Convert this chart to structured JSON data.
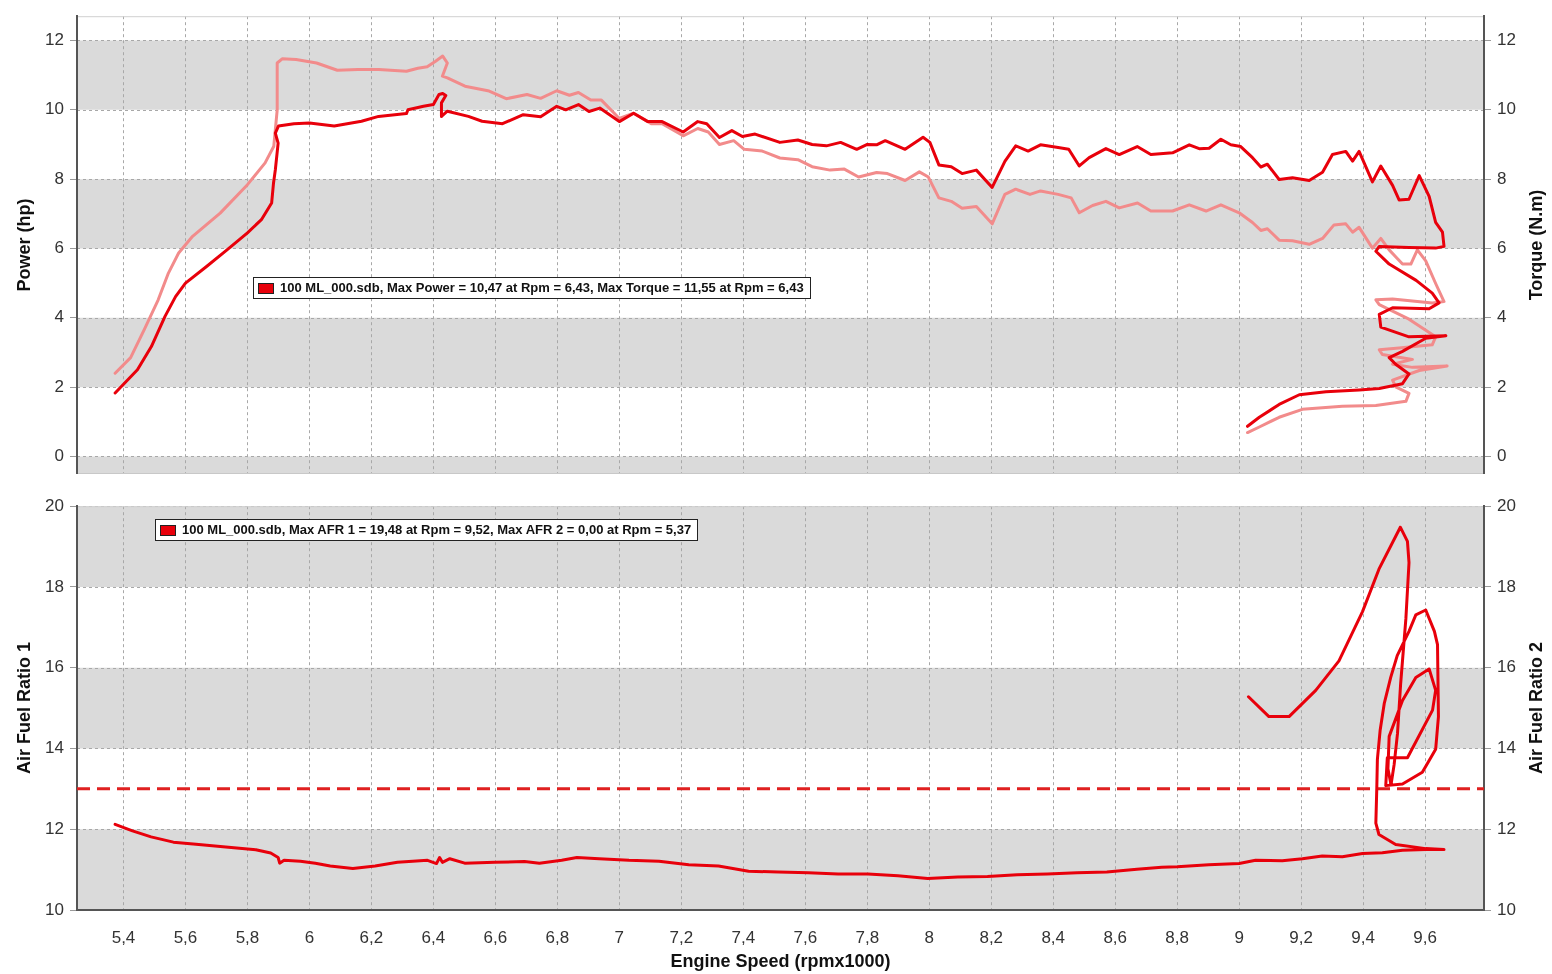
{
  "chart_data": [
    {
      "type": "line",
      "legend": "left",
      "tick_labels": "y",
      "grid": true,
      "ylabel": "Power (hp)",
      "y2label": "Torque (N.m)",
      "xlim": [
        5.25,
        9.79
      ],
      "xticks": [
        5.4,
        5.6,
        5.8,
        6,
        6.2,
        6.4,
        6.6,
        6.8,
        7,
        7.2,
        7.4,
        7.6,
        7.8,
        8,
        8.2,
        8.4,
        8.6,
        8.8,
        9,
        9.2,
        9.4,
        9.6
      ],
      "ylim": [
        -0.5,
        12.7
      ],
      "yticks": [
        0,
        2,
        4,
        6,
        8,
        10,
        12
      ],
      "y2lim": [
        -0.5,
        12.7
      ],
      "y2ticks": [
        0,
        2,
        4,
        6,
        8,
        10,
        12
      ],
      "bands": [
        {
          "axis": "y",
          "from": -0.5,
          "to": 0,
          "color": "#dadada"
        },
        {
          "axis": "y",
          "from": 2,
          "to": 4,
          "color": "#dadada"
        },
        {
          "axis": "y",
          "from": 6,
          "to": 8,
          "color": "#dadada"
        },
        {
          "axis": "y",
          "from": 10,
          "to": 12,
          "color": "#dadada"
        }
      ],
      "series": [
        {
          "name": "100 ML_000.sdb, Max Power = 10,47 at Rpm = 6,43, Max Torque = 11,55 at Rpm = 6,43",
          "color": "#e8000b",
          "x": [
            5.373,
            5.445,
            5.49,
            5.534,
            5.568,
            5.6,
            5.668,
            5.734,
            5.8,
            5.845,
            5.878,
            5.884,
            5.89,
            5.899,
            5.89,
            5.9,
            5.95,
            6.0,
            6.08,
            6.168,
            6.223,
            6.313,
            6.318,
            6.368,
            6.4,
            6.418,
            6.43,
            6.44,
            6.426,
            6.426,
            6.445,
            6.513,
            6.557,
            6.623,
            6.69,
            6.746,
            6.798,
            6.827,
            6.868,
            6.902,
            6.937,
            7.0,
            7.046,
            7.092,
            7.138,
            7.206,
            7.253,
            7.282,
            7.323,
            7.363,
            7.397,
            7.438,
            7.518,
            7.576,
            7.622,
            7.668,
            7.714,
            7.766,
            7.8,
            7.83,
            7.858,
            7.922,
            7.98,
            8.002,
            8.031,
            8.071,
            8.106,
            8.152,
            8.203,
            8.244,
            8.279,
            8.319,
            8.359,
            8.416,
            8.45,
            8.484,
            8.516,
            8.57,
            8.613,
            8.671,
            8.715,
            8.785,
            8.839,
            8.871,
            8.903,
            8.941,
            8.973,
            9.005,
            9.043,
            9.07,
            9.091,
            9.129,
            9.172,
            9.226,
            9.269,
            9.301,
            9.344,
            9.366,
            9.387,
            9.43,
            9.457,
            9.495,
            9.516,
            9.548,
            9.581,
            9.613,
            9.634,
            9.656,
            9.661,
            9.634,
            9.548,
            9.452,
            9.441,
            9.484,
            9.571,
            9.623,
            9.645,
            9.613,
            9.495,
            9.452,
            9.457,
            9.548,
            9.667,
            9.602,
            9.527,
            9.484,
            9.505,
            9.548,
            9.527,
            9.452,
            9.387,
            9.28,
            9.194,
            9.129,
            9.065,
            9.027
          ],
          "values": [
            1.83,
            2.5,
            3.17,
            4.04,
            4.61,
            5.0,
            5.48,
            5.96,
            6.45,
            6.83,
            7.31,
            7.88,
            8.27,
            9.04,
            9.33,
            9.53,
            9.6,
            9.62,
            9.53,
            9.67,
            9.81,
            9.89,
            10.0,
            10.1,
            10.15,
            10.44,
            10.47,
            10.41,
            10.2,
            9.81,
            9.96,
            9.81,
            9.67,
            9.6,
            9.86,
            9.8,
            10.1,
            10.0,
            10.15,
            9.95,
            10.05,
            9.66,
            9.9,
            9.66,
            9.66,
            9.36,
            9.66,
            9.6,
            9.2,
            9.4,
            9.23,
            9.3,
            9.06,
            9.13,
            9.0,
            8.96,
            9.06,
            8.86,
            9.0,
            8.99,
            9.11,
            8.86,
            9.21,
            9.06,
            8.41,
            8.36,
            8.16,
            8.26,
            7.76,
            8.51,
            8.96,
            8.81,
            8.99,
            8.91,
            8.86,
            8.38,
            8.62,
            8.88,
            8.71,
            8.94,
            8.71,
            8.76,
            8.99,
            8.88,
            8.89,
            9.15,
            8.99,
            8.94,
            8.62,
            8.35,
            8.43,
            7.99,
            8.04,
            7.96,
            8.2,
            8.71,
            8.8,
            8.52,
            8.8,
            7.92,
            8.38,
            7.82,
            7.4,
            7.42,
            8.1,
            7.5,
            6.75,
            6.47,
            6.06,
            6.01,
            6.03,
            6.06,
            5.92,
            5.55,
            5.08,
            4.71,
            4.43,
            4.26,
            4.29,
            4.1,
            3.73,
            3.45,
            3.48,
            3.41,
            3.03,
            2.85,
            2.66,
            2.38,
            2.1,
            1.96,
            1.92,
            1.87,
            1.78,
            1.5,
            1.13,
            0.87
          ]
        },
        {
          "color": "#f28b8b",
          "axis": "y2",
          "x": [
            5.373,
            5.423,
            5.467,
            5.512,
            5.545,
            5.578,
            5.623,
            5.712,
            5.8,
            5.857,
            5.885,
            5.896,
            5.896,
            5.912,
            5.957,
            6.023,
            6.09,
            6.157,
            6.224,
            6.313,
            6.35,
            6.38,
            6.407,
            6.43,
            6.445,
            6.429,
            6.445,
            6.502,
            6.58,
            6.635,
            6.702,
            6.746,
            6.798,
            6.839,
            6.868,
            6.908,
            6.942,
            7.0,
            7.046,
            7.103,
            7.138,
            7.206,
            7.253,
            7.287,
            7.323,
            7.369,
            7.403,
            7.461,
            7.518,
            7.576,
            7.622,
            7.68,
            7.726,
            7.772,
            7.83,
            7.865,
            7.922,
            7.968,
            7.997,
            8.031,
            8.071,
            8.106,
            8.152,
            8.203,
            8.244,
            8.279,
            8.325,
            8.359,
            8.416,
            8.458,
            8.484,
            8.527,
            8.57,
            8.613,
            8.672,
            8.715,
            8.785,
            8.839,
            8.893,
            8.941,
            9.0,
            9.043,
            9.07,
            9.091,
            9.129,
            9.172,
            9.226,
            9.269,
            9.306,
            9.344,
            9.366,
            9.387,
            9.43,
            9.457,
            9.484,
            9.527,
            9.554,
            9.575,
            9.602,
            9.634,
            9.661,
            9.623,
            9.495,
            9.441,
            9.452,
            9.548,
            9.634,
            9.623,
            9.516,
            9.452,
            9.462,
            9.559,
            9.495,
            9.559,
            9.671,
            9.581,
            9.495,
            9.505,
            9.548,
            9.538,
            9.441,
            9.333,
            9.204,
            9.129,
            9.065,
            9.027
          ],
          "values": [
            2.4,
            2.85,
            3.66,
            4.52,
            5.29,
            5.87,
            6.35,
            7.02,
            7.84,
            8.47,
            8.95,
            10.0,
            11.35,
            11.47,
            11.45,
            11.35,
            11.14,
            11.16,
            11.16,
            11.11,
            11.2,
            11.24,
            11.4,
            11.55,
            11.35,
            10.97,
            10.92,
            10.68,
            10.54,
            10.32,
            10.44,
            10.33,
            10.55,
            10.42,
            10.5,
            10.28,
            10.28,
            9.75,
            9.9,
            9.6,
            9.6,
            9.25,
            9.46,
            9.36,
            9.0,
            9.11,
            8.86,
            8.81,
            8.61,
            8.56,
            8.36,
            8.26,
            8.29,
            8.06,
            8.19,
            8.16,
            7.96,
            8.21,
            8.06,
            7.46,
            7.36,
            7.16,
            7.21,
            6.71,
            7.56,
            7.71,
            7.56,
            7.66,
            7.56,
            7.46,
            7.03,
            7.24,
            7.36,
            7.17,
            7.31,
            7.08,
            7.08,
            7.26,
            7.08,
            7.26,
            7.03,
            6.75,
            6.52,
            6.57,
            6.24,
            6.22,
            6.12,
            6.29,
            6.68,
            6.71,
            6.47,
            6.61,
            6.01,
            6.29,
            5.96,
            5.55,
            5.55,
            5.96,
            5.64,
            4.99,
            4.47,
            4.43,
            4.54,
            4.52,
            4.38,
            3.96,
            3.45,
            3.22,
            3.13,
            3.08,
            2.94,
            2.8,
            2.66,
            2.57,
            2.61,
            2.48,
            2.2,
            2.01,
            1.82,
            1.59,
            1.47,
            1.45,
            1.36,
            1.13,
            0.85,
            0.69
          ]
        }
      ]
    },
    {
      "type": "line",
      "legend": "top left",
      "grid": true,
      "xlabel": "Engine Speed (rpmx1000)",
      "ylabel": "Air Fuel Ratio 1",
      "y2label": "Air Fuel Ratio 2",
      "xlim": [
        5.25,
        9.79
      ],
      "xticks": [
        {
          "value": 5.4,
          "label": "5,4"
        },
        {
          "value": 5.6,
          "label": "5,6"
        },
        {
          "value": 5.8,
          "label": "5,8"
        },
        6,
        {
          "value": 6.2,
          "label": "6,2"
        },
        {
          "value": 6.4,
          "label": "6,4"
        },
        {
          "value": 6.6,
          "label": "6,6"
        },
        {
          "value": 6.8,
          "label": "6,8"
        },
        7,
        {
          "value": 7.2,
          "label": "7,2"
        },
        {
          "value": 7.4,
          "label": "7,4"
        },
        {
          "value": 7.6,
          "label": "7,6"
        },
        {
          "value": 7.8,
          "label": "7,8"
        },
        8,
        {
          "value": 8.2,
          "label": "8,2"
        },
        {
          "value": 8.4,
          "label": "8,4"
        },
        {
          "value": 8.6,
          "label": "8,6"
        },
        {
          "value": 8.8,
          "label": "8,8"
        },
        9,
        {
          "value": 9.2,
          "label": "9,2"
        },
        {
          "value": 9.4,
          "label": "9,4"
        },
        {
          "value": 9.6,
          "label": "9,6"
        }
      ],
      "ylim": [
        10,
        20
      ],
      "yticks": [
        10,
        12,
        14,
        16,
        18,
        20
      ],
      "y2lim": [
        10,
        20
      ],
      "y2ticks": [
        10,
        12,
        14,
        16,
        18,
        20
      ],
      "bands": [
        {
          "axis": "y",
          "from": 10,
          "to": 12,
          "color": "#dadada"
        },
        {
          "axis": "y",
          "from": 14,
          "to": 16,
          "color": "#dadada"
        },
        {
          "axis": "y",
          "from": 18,
          "to": 20,
          "color": "#dadada"
        }
      ],
      "ref_lines": [
        {
          "axis": "y",
          "value": 13,
          "color": "#e02020",
          "line_style": "dashed"
        }
      ],
      "series": [
        {
          "name": "100 ML_000.sdb, Max AFR 1 = 19,48 at Rpm = 9,52, Max AFR 2 = 0,00 at Rpm = 5,37",
          "color": "#e8000b",
          "x": [
            5.373,
            5.429,
            5.489,
            5.561,
            5.634,
            5.73,
            5.827,
            5.875,
            5.899,
            5.904,
            5.918,
            5.971,
            6.019,
            6.067,
            6.14,
            6.212,
            6.284,
            6.333,
            6.381,
            6.41,
            6.42,
            6.429,
            6.453,
            6.501,
            6.598,
            6.694,
            6.742,
            6.814,
            6.863,
            6.935,
            7.031,
            7.128,
            7.224,
            7.32,
            7.417,
            7.513,
            7.61,
            7.706,
            7.802,
            7.899,
            7.995,
            8.092,
            8.188,
            8.284,
            8.381,
            8.477,
            8.573,
            8.67,
            8.75,
            8.8,
            8.902,
            9.0,
            9.053,
            9.139,
            9.204,
            9.268,
            9.333,
            9.398,
            9.462,
            9.527,
            9.602,
            9.661,
            9.602,
            9.505,
            9.451,
            9.441,
            9.444,
            9.446,
            9.455,
            9.468,
            9.489,
            9.51,
            9.548,
            9.57,
            9.602,
            9.63,
            9.64,
            9.643,
            9.634,
            9.591,
            9.527,
            9.473,
            9.478,
            9.543,
            9.624,
            9.634,
            9.613,
            9.57,
            9.527,
            9.484,
            9.48,
            9.49,
            9.5,
            9.511,
            9.521,
            9.538,
            9.548,
            9.543,
            9.52,
            9.451,
            9.398,
            9.322,
            9.247,
            9.161,
            9.096,
            9.03
          ],
          "values": [
            12.12,
            11.96,
            11.81,
            11.68,
            11.63,
            11.56,
            11.49,
            11.41,
            11.3,
            11.16,
            11.23,
            11.21,
            11.16,
            11.09,
            11.03,
            11.09,
            11.18,
            11.21,
            11.23,
            11.15,
            11.3,
            11.18,
            11.27,
            11.16,
            11.18,
            11.2,
            11.16,
            11.23,
            11.3,
            11.27,
            11.23,
            11.21,
            11.12,
            11.09,
            10.96,
            10.94,
            10.92,
            10.89,
            10.89,
            10.85,
            10.78,
            10.82,
            10.83,
            10.87,
            10.89,
            10.92,
            10.94,
            11.01,
            11.06,
            11.07,
            11.12,
            11.15,
            11.23,
            11.22,
            11.27,
            11.34,
            11.32,
            11.4,
            11.42,
            11.48,
            11.5,
            11.5,
            11.52,
            11.62,
            11.87,
            12.15,
            13.0,
            13.73,
            14.46,
            15.11,
            15.76,
            16.3,
            16.9,
            17.31,
            17.43,
            16.9,
            16.57,
            14.79,
            13.98,
            13.41,
            13.12,
            13.08,
            13.77,
            13.77,
            14.95,
            15.44,
            15.97,
            15.76,
            15.19,
            14.3,
            13.5,
            13.1,
            13.6,
            14.38,
            15.6,
            17.22,
            18.6,
            19.13,
            19.48,
            18.44,
            17.39,
            16.17,
            15.44,
            14.79,
            14.79,
            15.28
          ]
        }
      ]
    }
  ]
}
